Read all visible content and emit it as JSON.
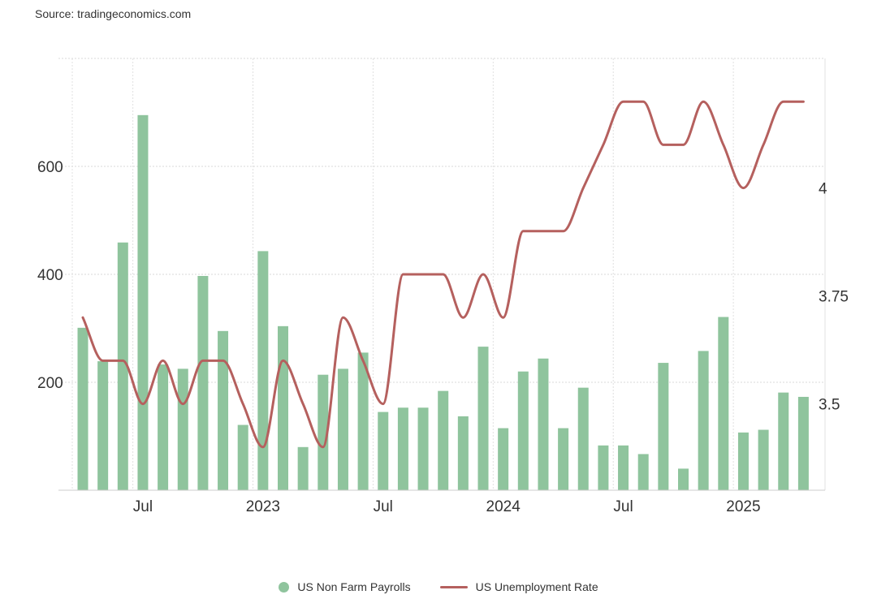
{
  "source": "Source: tradingeconomics.com",
  "chart_data": {
    "type": "bar+line",
    "x": [
      "2022-04",
      "2022-05",
      "2022-06",
      "2022-07",
      "2022-08",
      "2022-09",
      "2022-10",
      "2022-11",
      "2022-12",
      "2023-01",
      "2023-02",
      "2023-03",
      "2023-04",
      "2023-05",
      "2023-06",
      "2023-07",
      "2023-08",
      "2023-09",
      "2023-10",
      "2023-11",
      "2023-12",
      "2024-01",
      "2024-02",
      "2024-03",
      "2024-04",
      "2024-05",
      "2024-06",
      "2024-07",
      "2024-08",
      "2024-09",
      "2024-10",
      "2024-11",
      "2024-12",
      "2025-01",
      "2025-02",
      "2025-03",
      "2025-04"
    ],
    "x_tick_labels": [
      {
        "x": "2022-07",
        "label": "Jul"
      },
      {
        "x": "2023-01",
        "label": "2023"
      },
      {
        "x": "2023-07",
        "label": "Jul"
      },
      {
        "x": "2024-01",
        "label": "2024"
      },
      {
        "x": "2024-07",
        "label": "Jul"
      },
      {
        "x": "2025-01",
        "label": "2025"
      }
    ],
    "series": [
      {
        "name": "US Non Farm Payrolls",
        "type": "bar",
        "axis": "left",
        "color": "#8fc49d",
        "values": [
          301,
          239,
          459,
          695,
          233,
          225,
          397,
          295,
          121,
          443,
          304,
          80,
          214,
          225,
          255,
          145,
          153,
          153,
          184,
          137,
          266,
          115,
          220,
          244,
          115,
          190,
          83,
          83,
          67,
          236,
          40,
          258,
          321,
          107,
          112,
          181,
          173
        ]
      },
      {
        "name": "US Unemployment Rate",
        "type": "line",
        "axis": "right",
        "color": "#b5605e",
        "values": [
          3.7,
          3.6,
          3.6,
          3.5,
          3.6,
          3.5,
          3.6,
          3.6,
          3.5,
          3.4,
          3.6,
          3.5,
          3.4,
          3.7,
          3.6,
          3.5,
          3.8,
          3.8,
          3.8,
          3.7,
          3.8,
          3.7,
          3.9,
          3.9,
          3.9,
          4.0,
          4.1,
          4.2,
          4.2,
          4.1,
          4.1,
          4.2,
          4.1,
          4.0,
          4.1,
          4.2,
          4.2
        ]
      }
    ],
    "y_left": {
      "ylim": [
        0,
        800
      ],
      "ticks": [
        200,
        400,
        600
      ],
      "tick_labels": [
        "200",
        "400",
        "600"
      ]
    },
    "y_right": {
      "ylim": [
        3.3,
        4.3
      ],
      "ticks": [
        3.5,
        3.75,
        4.0
      ],
      "tick_labels": [
        "3.5",
        "3.75",
        "4"
      ]
    },
    "grid": true,
    "legend_position": "bottom-center"
  },
  "legend": {
    "items": [
      {
        "label": "US Non Farm Payrolls",
        "color": "#8fc49d"
      },
      {
        "label": "US Unemployment Rate",
        "color": "#b5605e"
      }
    ]
  }
}
